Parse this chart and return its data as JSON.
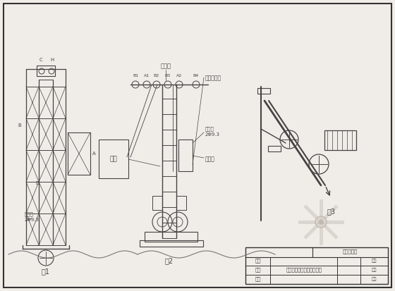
{
  "bg_color": "#f0ede8",
  "line_color": "#444444",
  "border_color": "#333333",
  "fig_width": 5.6,
  "fig_height": 4.13,
  "dpi": 100,
  "company_name": "观光零工程",
  "row1_label": "设计",
  "row2_label": "制图",
  "row3_label": "审核",
  "drawing_title": "钢槽提升机安装施工示意图",
  "col1_label": "编号",
  "col2_label": "图号",
  "col3_label": "可製",
  "labels": {
    "fig1_label": "图1",
    "fig2_label": "图2",
    "fig3_label": "图3",
    "top_pulley": "顶滑轮",
    "hoist_rope": "提升钢丝绳",
    "counterweight": "对重架",
    "wind_rope": "缆风绳\n2Φ9.3",
    "wind_rope2": "缆风绳\n2Φ9.3",
    "cage": "吊栏",
    "B1": "B1",
    "A1": "A1",
    "B2": "B2",
    "B3": "B3",
    "A2": "A2",
    "B4": "B4",
    "C": "C",
    "H": "H",
    "B": "B",
    "A": "A",
    "D": "D"
  }
}
